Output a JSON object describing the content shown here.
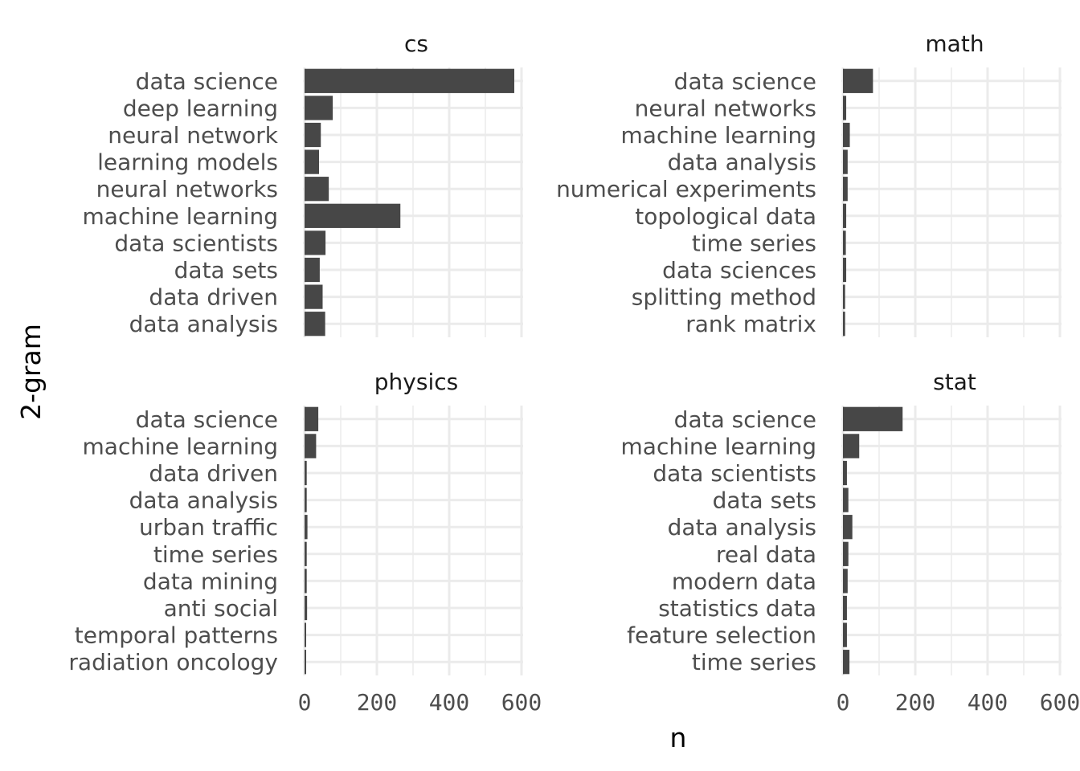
{
  "chart_data": {
    "type": "bar",
    "orientation": "horizontal",
    "facet_layout": "2x2",
    "xlabel": "n",
    "ylabel": "2-gram",
    "xlim": [
      0,
      600
    ],
    "xticks": [
      0,
      200,
      400,
      600
    ],
    "grid": true,
    "bar_color": "#474747",
    "grid_color": "#ebebeb",
    "facets": [
      {
        "title": "cs",
        "categories": [
          "data science",
          "deep learning",
          "neural network",
          "learning models",
          "neural networks",
          "machine learning",
          "data scientists",
          "data sets",
          "data driven",
          "data analysis"
        ],
        "values": [
          580,
          78,
          45,
          40,
          67,
          265,
          58,
          42,
          50,
          57
        ]
      },
      {
        "title": "math",
        "categories": [
          "data science",
          "neural networks",
          "machine learning",
          "data analysis",
          "numerical experiments",
          "topological data",
          "time series",
          "data sciences",
          "splitting method",
          "rank matrix"
        ],
        "values": [
          83,
          9,
          19,
          13,
          13,
          9,
          8,
          9,
          6,
          6
        ]
      },
      {
        "title": "physics",
        "categories": [
          "data science",
          "machine learning",
          "data driven",
          "data analysis",
          "urban traffic",
          "time series",
          "data mining",
          "anti social",
          "temporal patterns",
          "radiation oncology"
        ],
        "values": [
          38,
          32,
          6,
          6,
          8,
          6,
          6,
          7,
          4,
          4
        ]
      },
      {
        "title": "stat",
        "categories": [
          "data science",
          "machine learning",
          "data scientists",
          "data sets",
          "data analysis",
          "real data",
          "modern data",
          "statistics data",
          "feature selection",
          "time series"
        ],
        "values": [
          165,
          45,
          11,
          15,
          26,
          15,
          13,
          11,
          11,
          18
        ]
      }
    ]
  }
}
